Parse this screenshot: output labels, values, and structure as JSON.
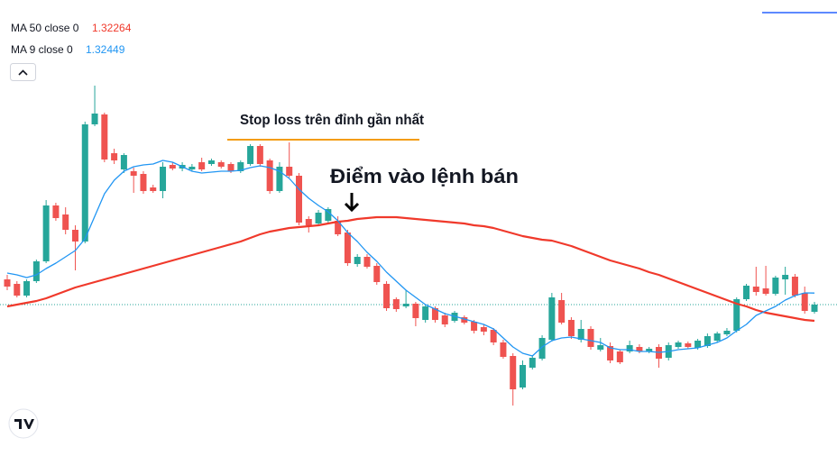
{
  "chart_data": {
    "type": "candlestick",
    "up_color": "#26a69a",
    "down_color": "#ef5350",
    "ylim": [
      1.31364,
      1.344
    ],
    "open": [
      1.3254,
      1.3251,
      1.32432,
      1.32528,
      1.3266,
      1.33032,
      1.32972,
      1.3287,
      1.32792,
      1.33572,
      1.33638,
      1.3338,
      1.33272,
      1.3326,
      1.33242,
      1.33152,
      1.33128,
      1.33302,
      1.33278,
      1.33272,
      1.3332,
      1.33308,
      1.3332,
      1.33308,
      1.3326,
      1.33308,
      1.33428,
      1.33332,
      1.33128,
      1.3329,
      1.3323,
      1.32942,
      1.32912,
      1.3293,
      1.3293,
      1.32852,
      1.32642,
      1.3269,
      1.3263,
      1.3251,
      1.32408,
      1.3236,
      1.32378,
      1.3227,
      1.32348,
      1.323,
      1.32264,
      1.32288,
      1.32258,
      1.32222,
      1.32204,
      1.3212,
      1.3203,
      1.3182,
      1.31952,
      1.32012,
      1.32138,
      1.32402,
      1.3227,
      1.32138,
      1.3221,
      1.32072,
      1.32096,
      1.3206,
      1.3206,
      1.3209,
      1.3206,
      1.3209,
      1.32018,
      1.3209,
      1.32114,
      1.32084,
      1.32096,
      1.32132,
      1.32174,
      1.32198,
      1.32408,
      1.32492,
      1.3248,
      1.32444,
      1.3254,
      1.32558,
      1.3245,
      1.32324
    ],
    "high": [
      1.3257,
      1.32528,
      1.3254,
      1.32672,
      1.33068,
      1.3305,
      1.3302,
      1.329,
      1.3359,
      1.3383,
      1.3365,
      1.3341,
      1.3338,
      1.33284,
      1.3326,
      1.3317,
      1.3332,
      1.3332,
      1.3332,
      1.33308,
      1.3335,
      1.33344,
      1.33332,
      1.3332,
      1.33332,
      1.3344,
      1.3344,
      1.33344,
      1.3332,
      1.33452,
      1.33248,
      1.3296,
      1.33002,
      1.3302,
      1.3296,
      1.3287,
      1.32708,
      1.32708,
      1.32648,
      1.32528,
      1.3242,
      1.32468,
      1.3239,
      1.32372,
      1.3236,
      1.32318,
      1.3233,
      1.323,
      1.3227,
      1.3224,
      1.32216,
      1.32138,
      1.32048,
      1.32,
      1.32036,
      1.32168,
      1.3245,
      1.3245,
      1.32288,
      1.3227,
      1.32228,
      1.3215,
      1.3212,
      1.32072,
      1.32132,
      1.32108,
      1.3209,
      1.32108,
      1.3212,
      1.32132,
      1.32126,
      1.32144,
      1.3218,
      1.32192,
      1.32216,
      1.3242,
      1.3251,
      1.32624,
      1.3263,
      1.32564,
      1.32624,
      1.32576,
      1.32492,
      1.3239
    ],
    "low": [
      1.32468,
      1.3242,
      1.3242,
      1.32516,
      1.32648,
      1.3293,
      1.3284,
      1.326,
      1.3278,
      1.3356,
      1.3332,
      1.33308,
      1.33248,
      1.33116,
      1.3311,
      1.33116,
      1.3308,
      1.33266,
      1.3326,
      1.3326,
      1.3326,
      1.33296,
      1.33278,
      1.33248,
      1.33248,
      1.33296,
      1.3329,
      1.3311,
      1.33116,
      1.33218,
      1.329,
      1.32852,
      1.329,
      1.32912,
      1.32828,
      1.3263,
      1.32624,
      1.32612,
      1.32504,
      1.3233,
      1.32324,
      1.32348,
      1.32228,
      1.32252,
      1.32252,
      1.32222,
      1.32252,
      1.3224,
      1.3218,
      1.32168,
      1.32102,
      1.32012,
      1.317,
      1.31808,
      1.3194,
      1.32,
      1.32126,
      1.3224,
      1.32144,
      1.3212,
      1.32072,
      1.3206,
      1.31982,
      1.31976,
      1.32048,
      1.32048,
      1.32048,
      1.31952,
      1.32,
      1.32078,
      1.32078,
      1.32072,
      1.32084,
      1.3212,
      1.32162,
      1.32186,
      1.32396,
      1.32432,
      1.32432,
      1.32432,
      1.32438,
      1.3242,
      1.32312,
      1.32312
    ],
    "close": [
      1.32492,
      1.32432,
      1.32528,
      1.3266,
      1.33032,
      1.32948,
      1.3287,
      1.32792,
      1.33572,
      1.33644,
      1.33338,
      1.33332,
      1.33368,
      1.3323,
      1.33128,
      1.33128,
      1.3329,
      1.33278,
      1.33302,
      1.3329,
      1.33272,
      1.33332,
      1.3329,
      1.3326,
      1.3332,
      1.33428,
      1.33308,
      1.33128,
      1.3329,
      1.3323,
      1.32918,
      1.329,
      1.32984,
      1.33008,
      1.3284,
      1.32648,
      1.3269,
      1.32624,
      1.32522,
      1.32348,
      1.32342,
      1.32378,
      1.32282,
      1.3236,
      1.3227,
      1.3224,
      1.32318,
      1.32252,
      1.32198,
      1.32192,
      1.3212,
      1.32024,
      1.31808,
      1.3197,
      1.32018,
      1.3215,
      1.3242,
      1.32252,
      1.32162,
      1.3221,
      1.3209,
      1.32102,
      1.32,
      1.31988,
      1.32102,
      1.3206,
      1.32078,
      1.32012,
      1.32102,
      1.3212,
      1.3209,
      1.32132,
      1.32162,
      1.3218,
      1.32198,
      1.32408,
      1.32498,
      1.32456,
      1.32444,
      1.32552,
      1.3257,
      1.32432,
      1.3233,
      1.32372
    ],
    "series": [
      {
        "name": "MA 50 close 0",
        "color": "#f0392b",
        "values": [
          1.3236,
          1.32372,
          1.32384,
          1.32396,
          1.32414,
          1.32438,
          1.32462,
          1.32486,
          1.32504,
          1.32522,
          1.3254,
          1.32558,
          1.32576,
          1.32594,
          1.32612,
          1.3263,
          1.32648,
          1.32666,
          1.32684,
          1.32702,
          1.3272,
          1.32738,
          1.32756,
          1.32774,
          1.32792,
          1.32816,
          1.3284,
          1.32858,
          1.3287,
          1.32882,
          1.32888,
          1.32894,
          1.329,
          1.32912,
          1.32924,
          1.3293,
          1.32942,
          1.32948,
          1.32954,
          1.32954,
          1.32954,
          1.32948,
          1.32942,
          1.32936,
          1.3293,
          1.32924,
          1.32918,
          1.32912,
          1.329,
          1.32894,
          1.32882,
          1.32864,
          1.32846,
          1.32828,
          1.32816,
          1.32804,
          1.32798,
          1.3278,
          1.32762,
          1.32738,
          1.32714,
          1.3269,
          1.32666,
          1.32648,
          1.3263,
          1.32612,
          1.32588,
          1.3257,
          1.32546,
          1.32522,
          1.32498,
          1.32474,
          1.3245,
          1.32426,
          1.32402,
          1.32378,
          1.3236,
          1.32336,
          1.32318,
          1.32306,
          1.32294,
          1.32282,
          1.3227,
          1.32264
        ]
      },
      {
        "name": "MA 9 close 0",
        "color": "#2196f3",
        "values": [
          1.32582,
          1.3257,
          1.32552,
          1.3257,
          1.32612,
          1.32648,
          1.3269,
          1.32732,
          1.3281,
          1.3296,
          1.3311,
          1.332,
          1.3326,
          1.3329,
          1.33302,
          1.33308,
          1.33332,
          1.3332,
          1.3329,
          1.3326,
          1.33248,
          1.33254,
          1.3326,
          1.3326,
          1.33266,
          1.33284,
          1.33296,
          1.33284,
          1.3326,
          1.33212,
          1.3314,
          1.3308,
          1.33032,
          1.3299,
          1.3293,
          1.32852,
          1.32792,
          1.3272,
          1.3266,
          1.32588,
          1.32528,
          1.32468,
          1.3242,
          1.32372,
          1.32342,
          1.32312,
          1.32294,
          1.32276,
          1.32258,
          1.3224,
          1.3221,
          1.3215,
          1.3209,
          1.32048,
          1.3203,
          1.3209,
          1.32132,
          1.3215,
          1.32156,
          1.32144,
          1.32132,
          1.3212,
          1.32084,
          1.32072,
          1.32072,
          1.3206,
          1.3206,
          1.32054,
          1.3206,
          1.32072,
          1.32078,
          1.32084,
          1.32102,
          1.3212,
          1.3215,
          1.32198,
          1.3224,
          1.323,
          1.3233,
          1.3236,
          1.32402,
          1.32432,
          1.3245,
          1.32449
        ]
      }
    ],
    "annotations": [
      "Stop loss trên đỉnh gần nhất",
      "Điểm vào lệnh bán"
    ]
  }
}
